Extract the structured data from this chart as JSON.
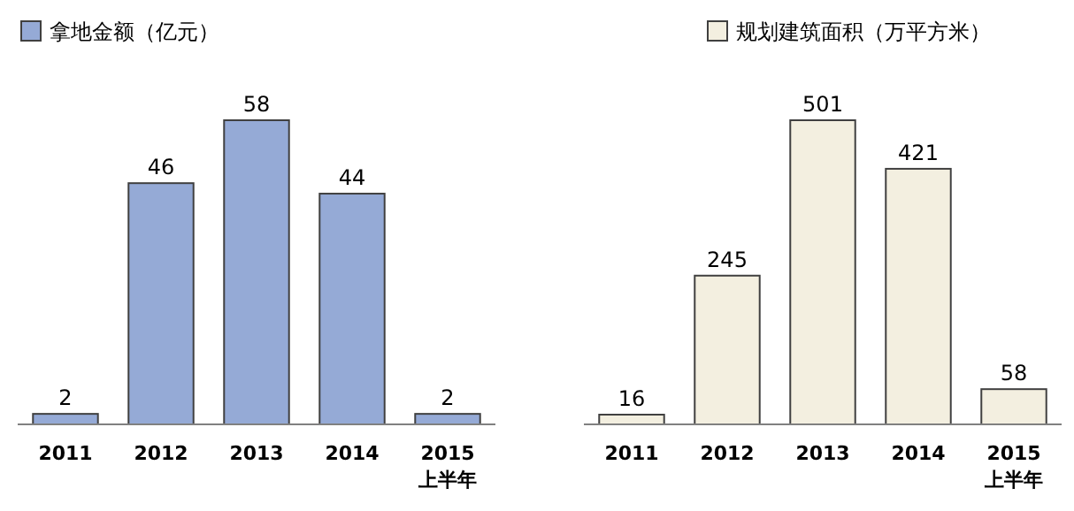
{
  "chart_data": [
    {
      "type": "bar",
      "categories": [
        "2011",
        "2012",
        "2013",
        "2014",
        "2015\n上半年"
      ],
      "series": [
        {
          "name": "拿地金额（亿元）",
          "color": "#95aad6",
          "values": [
            2,
            46,
            58,
            44,
            2
          ]
        }
      ],
      "data_labels": true,
      "legend": "top left"
    },
    {
      "type": "bar",
      "categories": [
        "2011",
        "2012",
        "2013",
        "2014",
        "2015\n上半年"
      ],
      "series": [
        {
          "name": "规划建筑面积（万平方米）",
          "color": "#f3efe0",
          "values": [
            16,
            245,
            501,
            421,
            58
          ]
        }
      ],
      "data_labels": true,
      "legend": "top right"
    }
  ]
}
